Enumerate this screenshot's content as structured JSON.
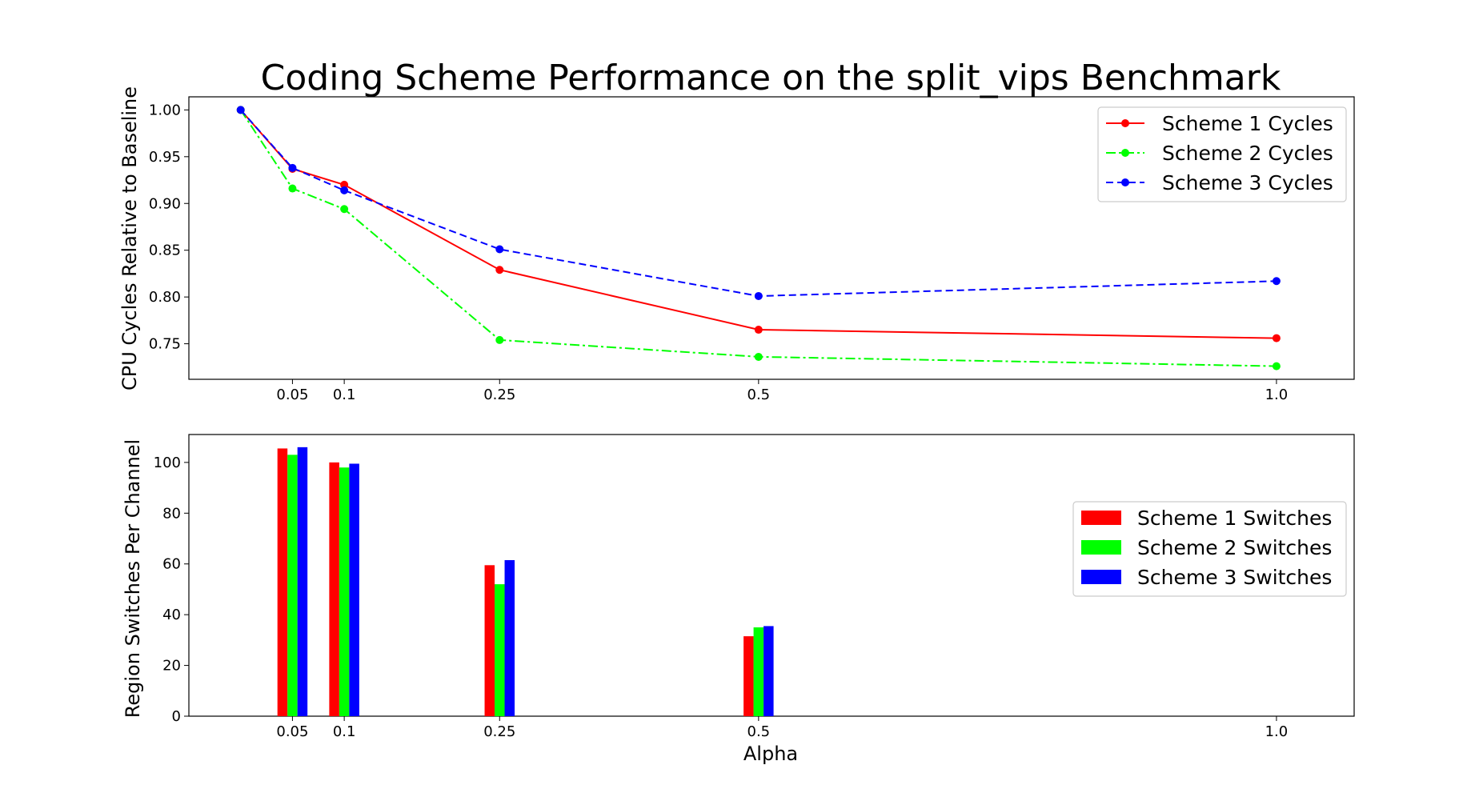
{
  "figure": {
    "title": "Coding Scheme Performance on the split_vips Benchmark"
  },
  "chart_data": [
    {
      "type": "line",
      "ylabel": "CPU Cycles Relative to Baseline",
      "xlabel": "",
      "xlim": [
        -0.05,
        1.075
      ],
      "ylim": [
        0.712,
        1.014
      ],
      "xticks": [
        0.05,
        0.1,
        0.25,
        0.5,
        1.0
      ],
      "xtick_labels": [
        "0.05",
        "0.1",
        "0.25",
        "0.5",
        "1.0"
      ],
      "yticks": [
        0.75,
        0.8,
        0.85,
        0.9,
        0.95,
        1.0
      ],
      "ytick_labels": [
        "0.75",
        "0.80",
        "0.85",
        "0.90",
        "0.95",
        "1.00"
      ],
      "x": [
        0.0,
        0.05,
        0.1,
        0.25,
        0.5,
        1.0
      ],
      "legend_position": "top-right",
      "series": [
        {
          "name": "Scheme 1 Cycles",
          "color": "#ff0000",
          "linestyle": "solid",
          "values": [
            1.0,
            0.937,
            0.92,
            0.829,
            0.765,
            0.756
          ]
        },
        {
          "name": "Scheme 2 Cycles",
          "color": "#00ff00",
          "linestyle": "dashdot",
          "values": [
            1.0,
            0.916,
            0.894,
            0.754,
            0.736,
            0.726
          ]
        },
        {
          "name": "Scheme 3 Cycles",
          "color": "#0000ff",
          "linestyle": "dashed",
          "values": [
            1.0,
            0.938,
            0.914,
            0.851,
            0.801,
            0.817
          ]
        }
      ]
    },
    {
      "type": "bar",
      "ylabel": "Region Switches Per Channel",
      "xlabel": "Alpha",
      "xlim": [
        -0.05,
        1.075
      ],
      "ylim": [
        0,
        111
      ],
      "xticks": [
        0.05,
        0.1,
        0.25,
        0.5,
        1.0
      ],
      "xtick_labels": [
        "0.05",
        "0.1",
        "0.25",
        "0.5",
        "1.0"
      ],
      "yticks": [
        0,
        20,
        40,
        60,
        80,
        100
      ],
      "ytick_labels": [
        "0",
        "20",
        "40",
        "60",
        "80",
        "100"
      ],
      "categories": [
        0.05,
        0.1,
        0.25,
        0.5,
        1.0
      ],
      "legend_position": "center-right",
      "series": [
        {
          "name": "Scheme 1 Switches",
          "color": "#ff0000",
          "values": [
            105.5,
            100,
            59.5,
            31.5,
            0
          ]
        },
        {
          "name": "Scheme 2 Switches",
          "color": "#00ff00",
          "values": [
            103,
            98,
            52,
            35,
            0
          ]
        },
        {
          "name": "Scheme 3 Switches",
          "color": "#0000ff",
          "values": [
            106,
            99.5,
            61.5,
            35.5,
            0
          ]
        }
      ]
    }
  ]
}
